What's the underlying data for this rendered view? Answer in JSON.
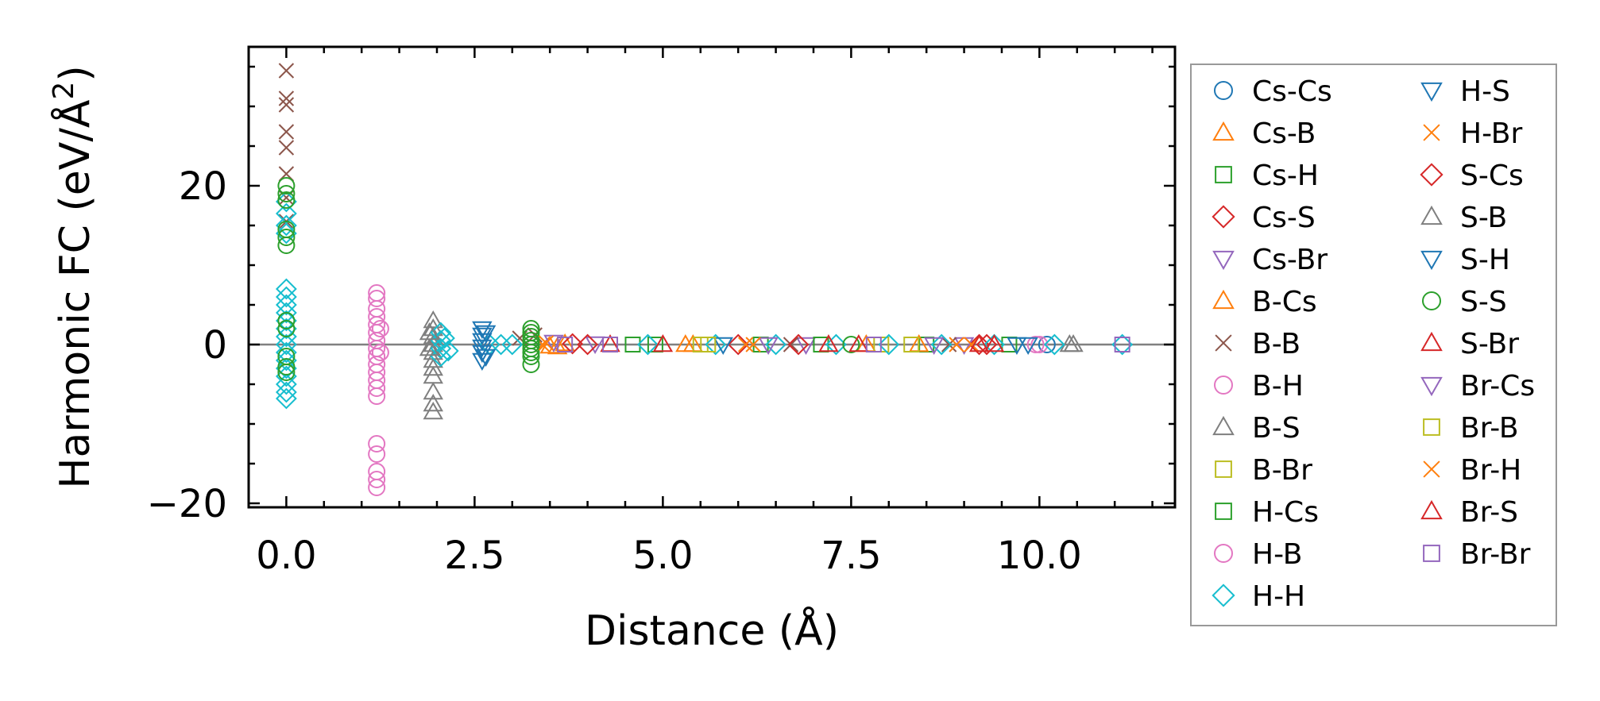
{
  "chart_data": {
    "type": "scatter",
    "title": "",
    "xlabel": "Distance (Å)",
    "ylabel_main": "Harmonic FC (eV/Å",
    "ylabel_sup": "2",
    "ylabel_close": ")",
    "xlim": [
      -0.5,
      11.8
    ],
    "ylim": [
      -20.5,
      37.5
    ],
    "xticks": [
      0.0,
      2.5,
      5.0,
      7.5,
      10.0
    ],
    "xtick_labels": [
      "0.0",
      "2.5",
      "5.0",
      "7.5",
      "10.0"
    ],
    "yticks": [
      -20,
      0,
      20
    ],
    "ytick_labels": [
      "−20",
      "0",
      "20"
    ],
    "grid": false,
    "legend_position": "outside-right",
    "reference_line_y": 0,
    "series": [
      {
        "name": "Cs-Cs",
        "marker": "circle",
        "color": "#1f77b4",
        "points": [
          [
            10.1,
            0.0
          ]
        ]
      },
      {
        "name": "Cs-B",
        "marker": "triangle-up",
        "color": "#ff7f0e",
        "points": [
          [
            3.5,
            -0.2
          ],
          [
            3.7,
            0.1
          ],
          [
            5.3,
            0.0
          ],
          [
            7.7,
            0.0
          ]
        ]
      },
      {
        "name": "Cs-H",
        "marker": "square",
        "color": "#2ca02c",
        "points": [
          [
            4.6,
            0.0
          ],
          [
            6.3,
            0.0
          ],
          [
            8.5,
            0.0
          ]
        ]
      },
      {
        "name": "Cs-S",
        "marker": "diamond",
        "color": "#d62728",
        "points": [
          [
            3.8,
            0.1
          ],
          [
            6.0,
            0.0
          ],
          [
            9.2,
            0.0
          ]
        ]
      },
      {
        "name": "Cs-Br",
        "marker": "triangle-down",
        "color": "#9467bd",
        "points": [
          [
            4.1,
            0.1
          ],
          [
            6.9,
            0.0
          ],
          [
            9.0,
            0.0
          ]
        ]
      },
      {
        "name": "B-Cs",
        "marker": "triangle-up",
        "color": "#ff7f0e",
        "points": [
          [
            3.6,
            -0.3
          ],
          [
            5.4,
            0.0
          ],
          [
            8.4,
            0.0
          ]
        ]
      },
      {
        "name": "B-B",
        "marker": "x",
        "color": "#8c564b",
        "points": [
          [
            0.0,
            34.5
          ],
          [
            0.0,
            31.0
          ],
          [
            0.0,
            30.2
          ],
          [
            0.0,
            26.8
          ],
          [
            0.0,
            24.8
          ],
          [
            0.0,
            21.5
          ],
          [
            0.0,
            18.5
          ],
          [
            0.0,
            15.5
          ],
          [
            3.1,
            0.8
          ],
          [
            3.3,
            1.2
          ],
          [
            6.7,
            0.0
          ],
          [
            8.8,
            0.0
          ]
        ]
      },
      {
        "name": "B-H",
        "marker": "circle",
        "color": "#e377c2",
        "points": [
          [
            1.2,
            6.5
          ],
          [
            1.2,
            5.8
          ],
          [
            1.2,
            4.5
          ],
          [
            1.2,
            3.5
          ],
          [
            1.2,
            2.5
          ],
          [
            1.2,
            1.5
          ],
          [
            1.2,
            0.5
          ],
          [
            1.2,
            -0.5
          ],
          [
            1.2,
            -1.5
          ],
          [
            1.2,
            -2.5
          ],
          [
            1.2,
            -3.5
          ],
          [
            1.2,
            -4.5
          ],
          [
            1.2,
            -5.5
          ],
          [
            1.2,
            -6.5
          ],
          [
            1.2,
            -12.5
          ],
          [
            1.2,
            -13.8
          ],
          [
            1.2,
            -16.0
          ],
          [
            1.2,
            -17.0
          ],
          [
            1.2,
            -18.0
          ],
          [
            10.0,
            0.0
          ]
        ]
      },
      {
        "name": "B-S",
        "marker": "triangle-up",
        "color": "#7f7f7f",
        "points": [
          [
            1.95,
            3.0
          ],
          [
            1.95,
            2.0
          ],
          [
            1.95,
            1.0
          ],
          [
            1.95,
            0.0
          ],
          [
            1.95,
            -1.0
          ],
          [
            1.95,
            -2.0
          ],
          [
            1.95,
            -3.0
          ],
          [
            1.95,
            -4.0
          ],
          [
            1.95,
            -6.0
          ],
          [
            1.95,
            -7.5
          ],
          [
            1.95,
            -8.5
          ],
          [
            10.4,
            0.0
          ]
        ]
      },
      {
        "name": "B-Br",
        "marker": "square",
        "color": "#bcbd22",
        "points": [
          [
            5.5,
            0.0
          ],
          [
            7.9,
            0.0
          ]
        ]
      },
      {
        "name": "H-Cs",
        "marker": "square",
        "color": "#2ca02c",
        "points": [
          [
            4.9,
            0.0
          ],
          [
            7.1,
            0.0
          ],
          [
            9.6,
            0.0
          ]
        ]
      },
      {
        "name": "H-B",
        "marker": "circle",
        "color": "#e377c2",
        "points": [
          [
            1.25,
            2.0
          ],
          [
            1.25,
            -1.0
          ],
          [
            9.95,
            0.0
          ]
        ]
      },
      {
        "name": "H-H",
        "marker": "diamond",
        "color": "#17becf",
        "points": [
          [
            0.0,
            18.0
          ],
          [
            0.0,
            16.5
          ],
          [
            0.0,
            15.0
          ],
          [
            0.0,
            14.0
          ],
          [
            0.0,
            7.0
          ],
          [
            0.0,
            6.0
          ],
          [
            0.0,
            5.0
          ],
          [
            0.0,
            4.0
          ],
          [
            0.0,
            3.0
          ],
          [
            0.0,
            2.0
          ],
          [
            0.0,
            1.0
          ],
          [
            0.0,
            0.0
          ],
          [
            0.0,
            -1.0
          ],
          [
            0.0,
            -2.0
          ],
          [
            0.0,
            -3.0
          ],
          [
            0.0,
            -4.0
          ],
          [
            0.0,
            -5.0
          ],
          [
            0.0,
            -6.0
          ],
          [
            0.0,
            -6.8
          ],
          [
            2.05,
            1.5
          ],
          [
            2.05,
            0.5
          ],
          [
            2.05,
            -0.5
          ],
          [
            2.05,
            -1.5
          ],
          [
            2.1,
            0.8
          ],
          [
            2.15,
            -0.8
          ],
          [
            2.7,
            0.0
          ],
          [
            2.85,
            0.0
          ],
          [
            3.0,
            0.0
          ],
          [
            4.8,
            0.0
          ],
          [
            5.7,
            0.0
          ],
          [
            6.5,
            0.0
          ],
          [
            7.3,
            0.0
          ],
          [
            8.0,
            0.0
          ],
          [
            8.7,
            0.0
          ],
          [
            9.4,
            0.0
          ],
          [
            10.2,
            0.0
          ],
          [
            11.1,
            0.0
          ]
        ]
      },
      {
        "name": "H-S",
        "marker": "triangle-down",
        "color": "#1f77b4",
        "points": [
          [
            2.6,
            2.0
          ],
          [
            2.6,
            1.2
          ],
          [
            2.6,
            0.5
          ],
          [
            2.6,
            -0.3
          ],
          [
            2.6,
            -1.0
          ],
          [
            2.6,
            -2.0
          ],
          [
            5.8,
            0.0
          ],
          [
            9.7,
            0.0
          ]
        ]
      },
      {
        "name": "H-Br",
        "marker": "x",
        "color": "#ff7f0e",
        "points": [
          [
            3.4,
            0.0
          ],
          [
            6.1,
            0.0
          ],
          [
            8.9,
            0.0
          ]
        ]
      },
      {
        "name": "S-Cs",
        "marker": "diamond",
        "color": "#d62728",
        "points": [
          [
            4.0,
            0.0
          ],
          [
            6.8,
            0.0
          ],
          [
            9.3,
            0.0
          ]
        ]
      },
      {
        "name": "S-B",
        "marker": "triangle-up",
        "color": "#7f7f7f",
        "points": [
          [
            1.9,
            1.5
          ],
          [
            1.9,
            -0.5
          ],
          [
            10.45,
            0.0
          ]
        ]
      },
      {
        "name": "S-H",
        "marker": "triangle-down",
        "color": "#1f77b4",
        "points": [
          [
            2.65,
            1.5
          ],
          [
            2.65,
            -1.5
          ],
          [
            9.85,
            0.0
          ]
        ]
      },
      {
        "name": "S-S",
        "marker": "circle",
        "color": "#2ca02c",
        "points": [
          [
            0.0,
            20.0
          ],
          [
            0.0,
            19.0
          ],
          [
            0.0,
            18.2
          ],
          [
            0.0,
            14.5
          ],
          [
            0.0,
            13.5
          ],
          [
            0.0,
            12.5
          ],
          [
            0.0,
            3.0
          ],
          [
            0.0,
            2.0
          ],
          [
            0.0,
            -1.5
          ],
          [
            0.0,
            -2.8
          ],
          [
            0.0,
            -3.5
          ],
          [
            3.25,
            2.0
          ],
          [
            3.25,
            1.5
          ],
          [
            3.25,
            1.0
          ],
          [
            3.25,
            0.5
          ],
          [
            3.25,
            0.0
          ],
          [
            3.25,
            -0.5
          ],
          [
            3.25,
            -1.0
          ],
          [
            3.25,
            -1.5
          ],
          [
            3.25,
            -2.5
          ],
          [
            7.5,
            0.0
          ]
        ]
      },
      {
        "name": "S-Br",
        "marker": "triangle-up",
        "color": "#d62728",
        "points": [
          [
            5.0,
            0.0
          ],
          [
            7.6,
            0.0
          ],
          [
            9.4,
            0.0
          ]
        ]
      },
      {
        "name": "Br-Cs",
        "marker": "triangle-down",
        "color": "#9467bd",
        "points": [
          [
            3.55,
            0.3
          ],
          [
            6.4,
            0.0
          ],
          [
            8.6,
            0.0
          ]
        ]
      },
      {
        "name": "Br-B",
        "marker": "square",
        "color": "#bcbd22",
        "points": [
          [
            5.6,
            0.0
          ],
          [
            8.3,
            0.0
          ]
        ]
      },
      {
        "name": "Br-H",
        "marker": "x",
        "color": "#ff7f0e",
        "points": [
          [
            3.45,
            0.2
          ],
          [
            6.2,
            0.0
          ],
          [
            9.1,
            0.0
          ]
        ]
      },
      {
        "name": "Br-S",
        "marker": "triangle-up",
        "color": "#d62728",
        "points": [
          [
            4.3,
            0.0
          ],
          [
            7.2,
            0.0
          ],
          [
            9.2,
            0.0
          ]
        ]
      },
      {
        "name": "Br-Br",
        "marker": "square",
        "color": "#9467bd",
        "points": [
          [
            3.7,
            0.0
          ],
          [
            4.3,
            0.0
          ],
          [
            7.8,
            0.0
          ],
          [
            11.1,
            0.0
          ]
        ]
      }
    ]
  }
}
